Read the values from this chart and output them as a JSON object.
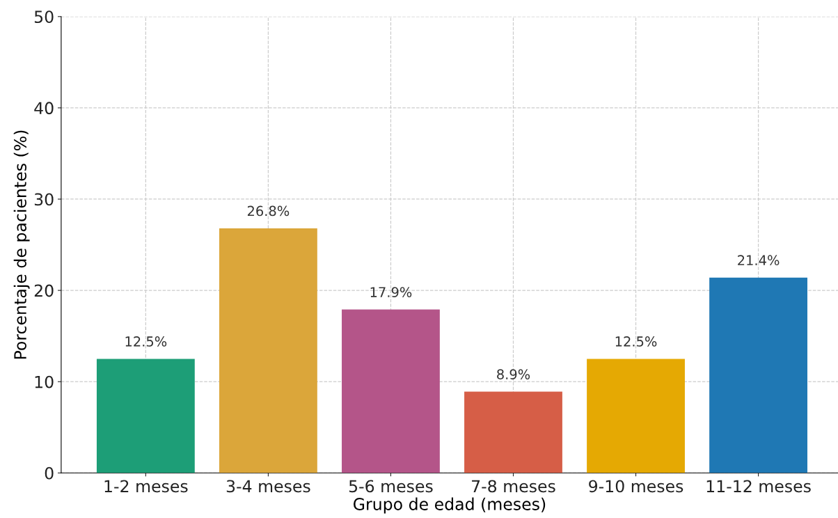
{
  "chart_data": {
    "type": "bar",
    "xlabel": "Grupo de edad (meses)",
    "ylabel": "Porcentaje de pacientes (%)",
    "categories": [
      "1-2 meses",
      "3-4 meses",
      "5-6 meses",
      "7-8 meses",
      "9-10 meses",
      "11-12 meses"
    ],
    "values": [
      12.5,
      26.8,
      17.9,
      8.9,
      12.5,
      21.4
    ],
    "colors": [
      "#1d9e77",
      "#dba63a",
      "#b45589",
      "#d65e47",
      "#e5a903",
      "#1f78b4"
    ],
    "value_labels": [
      "12.5%",
      "26.8%",
      "17.9%",
      "8.9%",
      "12.5%",
      "21.4%"
    ],
    "ylim": [
      0,
      50
    ],
    "yticks": [
      0,
      10,
      20,
      30,
      40,
      50
    ],
    "grid": true
  }
}
